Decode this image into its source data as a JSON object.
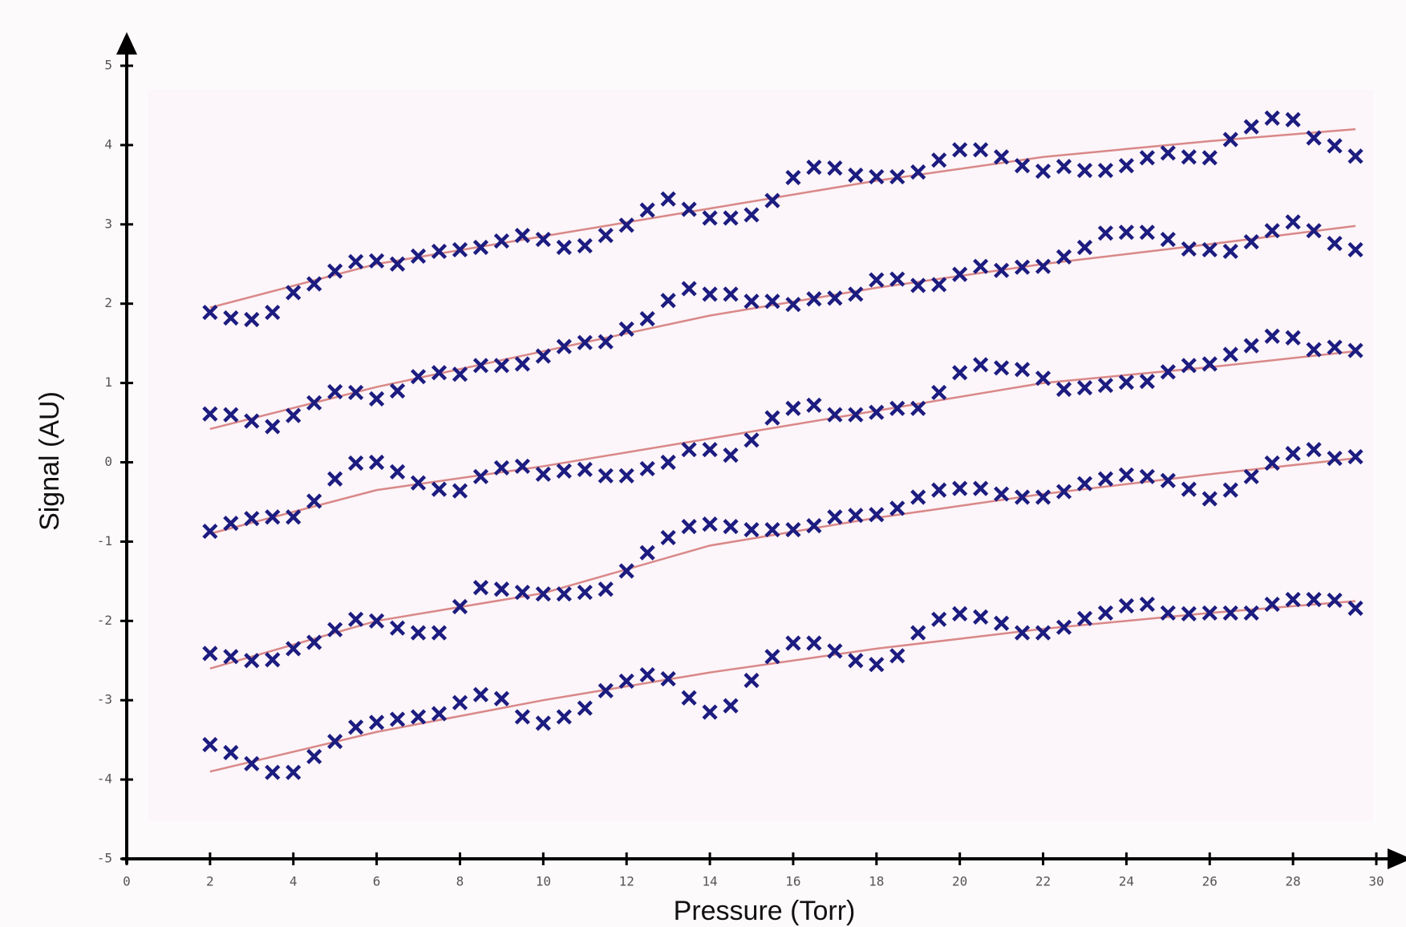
{
  "chart_data": {
    "type": "scatter",
    "x_label": "Pressure (Torr)",
    "y_label": "Signal (AU)",
    "xlim": [
      0,
      30
    ],
    "ylim": [
      -5,
      5
    ],
    "xticks": [
      0,
      2,
      4,
      6,
      8,
      10,
      12,
      14,
      16,
      18,
      20,
      22,
      24,
      26,
      28,
      30
    ],
    "yticks": [
      -5,
      -4,
      -3,
      -2,
      -1,
      0,
      1,
      2,
      3,
      4,
      5
    ],
    "x": [
      2,
      2.5,
      3,
      3.5,
      4,
      4.5,
      5,
      5.5,
      6,
      6.5,
      7,
      7.5,
      8,
      8.5,
      9,
      9.5,
      10,
      10.5,
      11,
      11.5,
      12,
      12.5,
      13,
      13.5,
      14,
      14.5,
      15,
      15.5,
      16,
      16.5,
      17,
      17.5,
      18,
      18.5,
      19,
      19.5,
      20,
      20.5,
      21,
      21.5,
      22,
      22.5,
      23,
      23.5,
      24,
      24.5,
      25,
      25.5,
      26,
      26.5,
      27,
      27.5,
      28,
      28.5,
      29,
      29.5
    ],
    "series": [
      {
        "color": "#1c1c80",
        "values": [
          1.89,
          1.82,
          1.8,
          1.89,
          2.14,
          2.25,
          2.41,
          2.53,
          2.54,
          2.5,
          2.6,
          2.66,
          2.68,
          2.71,
          2.79,
          2.86,
          2.81,
          2.71,
          2.73,
          2.86,
          2.99,
          3.18,
          3.32,
          3.19,
          3.08,
          3.08,
          3.12,
          3.3,
          3.59,
          3.72,
          3.71,
          3.62,
          3.6,
          3.6,
          3.66,
          3.81,
          3.94,
          3.94,
          3.85,
          3.74,
          3.67,
          3.73,
          3.68,
          3.68,
          3.74,
          3.84,
          3.9,
          3.85,
          3.84,
          4.07,
          4.23,
          4.34,
          4.32,
          4.09,
          3.99,
          3.86
        ]
      },
      {
        "color": "#1c1c80",
        "values": [
          0.61,
          0.6,
          0.52,
          0.45,
          0.59,
          0.75,
          0.89,
          0.88,
          0.8,
          0.9,
          1.08,
          1.13,
          1.11,
          1.22,
          1.22,
          1.24,
          1.34,
          1.46,
          1.51,
          1.52,
          1.68,
          1.81,
          2.04,
          2.19,
          2.12,
          2.12,
          2.03,
          2.03,
          1.99,
          2.06,
          2.07,
          2.12,
          2.3,
          2.31,
          2.23,
          2.24,
          2.37,
          2.47,
          2.42,
          2.46,
          2.47,
          2.59,
          2.71,
          2.89,
          2.9,
          2.9,
          2.81,
          2.69,
          2.68,
          2.66,
          2.78,
          2.92,
          3.03,
          2.92,
          2.76,
          2.68
        ]
      },
      {
        "color": "#1c1c80",
        "values": [
          -0.87,
          -0.77,
          -0.71,
          -0.69,
          -0.69,
          -0.49,
          -0.21,
          -0.01,
          0.0,
          -0.12,
          -0.26,
          -0.34,
          -0.36,
          -0.18,
          -0.07,
          -0.05,
          -0.15,
          -0.11,
          -0.09,
          -0.17,
          -0.17,
          -0.08,
          0.0,
          0.16,
          0.16,
          0.09,
          0.28,
          0.56,
          0.68,
          0.72,
          0.6,
          0.6,
          0.63,
          0.68,
          0.68,
          0.88,
          1.13,
          1.23,
          1.19,
          1.17,
          1.06,
          0.92,
          0.94,
          0.97,
          1.01,
          1.02,
          1.14,
          1.22,
          1.24,
          1.36,
          1.47,
          1.59,
          1.57,
          1.42,
          1.45,
          1.41
        ]
      },
      {
        "color": "#1c1c80",
        "values": [
          -2.41,
          -2.45,
          -2.5,
          -2.49,
          -2.35,
          -2.27,
          -2.11,
          -1.98,
          -2.0,
          -2.09,
          -2.15,
          -2.15,
          -1.82,
          -1.58,
          -1.6,
          -1.64,
          -1.66,
          -1.66,
          -1.64,
          -1.6,
          -1.37,
          -1.14,
          -0.95,
          -0.81,
          -0.78,
          -0.81,
          -0.85,
          -0.85,
          -0.85,
          -0.8,
          -0.69,
          -0.67,
          -0.66,
          -0.58,
          -0.44,
          -0.35,
          -0.33,
          -0.33,
          -0.4,
          -0.44,
          -0.44,
          -0.37,
          -0.27,
          -0.21,
          -0.16,
          -0.18,
          -0.23,
          -0.34,
          -0.46,
          -0.35,
          -0.18,
          -0.01,
          0.11,
          0.16,
          0.05,
          0.07
        ]
      },
      {
        "color": "#1c1c80",
        "values": [
          -3.56,
          -3.66,
          -3.8,
          -3.91,
          -3.91,
          -3.71,
          -3.52,
          -3.34,
          -3.28,
          -3.24,
          -3.21,
          -3.17,
          -3.03,
          -2.93,
          -2.98,
          -3.21,
          -3.29,
          -3.21,
          -3.1,
          -2.88,
          -2.76,
          -2.68,
          -2.73,
          -2.97,
          -3.15,
          -3.07,
          -2.75,
          -2.45,
          -2.28,
          -2.28,
          -2.38,
          -2.5,
          -2.55,
          -2.44,
          -2.15,
          -1.98,
          -1.91,
          -1.95,
          -2.03,
          -2.15,
          -2.15,
          -2.08,
          -1.97,
          -1.9,
          -1.81,
          -1.79,
          -1.9,
          -1.91,
          -1.9,
          -1.9,
          -1.9,
          -1.79,
          -1.73,
          -1.73,
          -1.74,
          -1.84
        ]
      }
    ],
    "fits": [
      {
        "color": "#d98888",
        "x": [
          2,
          6,
          10,
          14,
          18,
          22,
          26,
          29.5
        ],
        "values": [
          1.95,
          2.5,
          2.85,
          3.2,
          3.55,
          3.85,
          4.05,
          4.2
        ]
      },
      {
        "color": "#d98888",
        "x": [
          2,
          6,
          10,
          14,
          18,
          22,
          26,
          29.5
        ],
        "values": [
          0.42,
          0.95,
          1.4,
          1.85,
          2.2,
          2.5,
          2.75,
          2.98
        ]
      },
      {
        "color": "#d98888",
        "x": [
          2,
          6,
          10,
          14,
          18,
          22,
          26,
          29.5
        ],
        "values": [
          -0.9,
          -0.35,
          -0.05,
          0.3,
          0.65,
          1.0,
          1.2,
          1.4
        ]
      },
      {
        "color": "#d98888",
        "x": [
          2,
          6,
          10,
          14,
          18,
          22,
          26,
          29.5
        ],
        "values": [
          -2.6,
          -2.0,
          -1.65,
          -1.05,
          -0.7,
          -0.4,
          -0.15,
          0.05
        ]
      },
      {
        "color": "#d98888",
        "x": [
          2,
          6,
          10,
          14,
          18,
          22,
          26,
          29.5
        ],
        "values": [
          -3.9,
          -3.4,
          -3.0,
          -2.65,
          -2.35,
          -2.1,
          -1.9,
          -1.75
        ]
      }
    ]
  }
}
